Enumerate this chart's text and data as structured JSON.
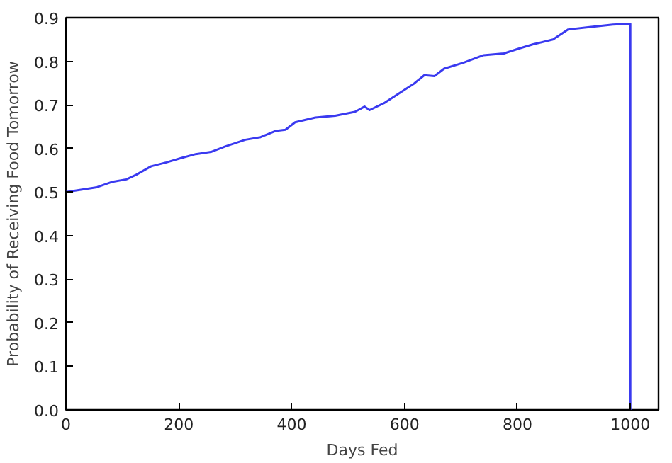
{
  "chart_data": {
    "type": "line",
    "xlabel": "Days Fed",
    "ylabel": "Probability of Receiving Food Tomorrow",
    "xlim": [
      0,
      1050
    ],
    "ylim": [
      0,
      0.9
    ],
    "xticks": [
      0,
      200,
      400,
      600,
      800,
      1000
    ],
    "yticks": [
      {
        "value": 0,
        "label": "0.0"
      },
      0.1,
      0.2,
      0.3,
      0.4,
      0.5,
      0.6,
      0.7,
      0.8,
      0.9
    ],
    "grid": false,
    "series": [
      {
        "color": "#3a3af0",
        "x": [
          0,
          55,
          81,
          107,
          125,
          151,
          178,
          204,
          230,
          257,
          283,
          318,
          345,
          371,
          389,
          406,
          442,
          477,
          512,
          529,
          538,
          565,
          591,
          617,
          635,
          653,
          670,
          705,
          740,
          776,
          802,
          828,
          863,
          890,
          925,
          969,
          1000,
          1000
        ],
        "values": [
          0.5,
          0.511,
          0.523,
          0.529,
          0.54,
          0.559,
          0.568,
          0.578,
          0.587,
          0.592,
          0.605,
          0.62,
          0.626,
          0.64,
          0.643,
          0.66,
          0.671,
          0.675,
          0.684,
          0.696,
          0.688,
          0.705,
          0.727,
          0.749,
          0.768,
          0.766,
          0.783,
          0.797,
          0.814,
          0.818,
          0.829,
          0.839,
          0.85,
          0.873,
          0.878,
          0.884,
          0.886,
          0.0
        ]
      }
    ]
  }
}
